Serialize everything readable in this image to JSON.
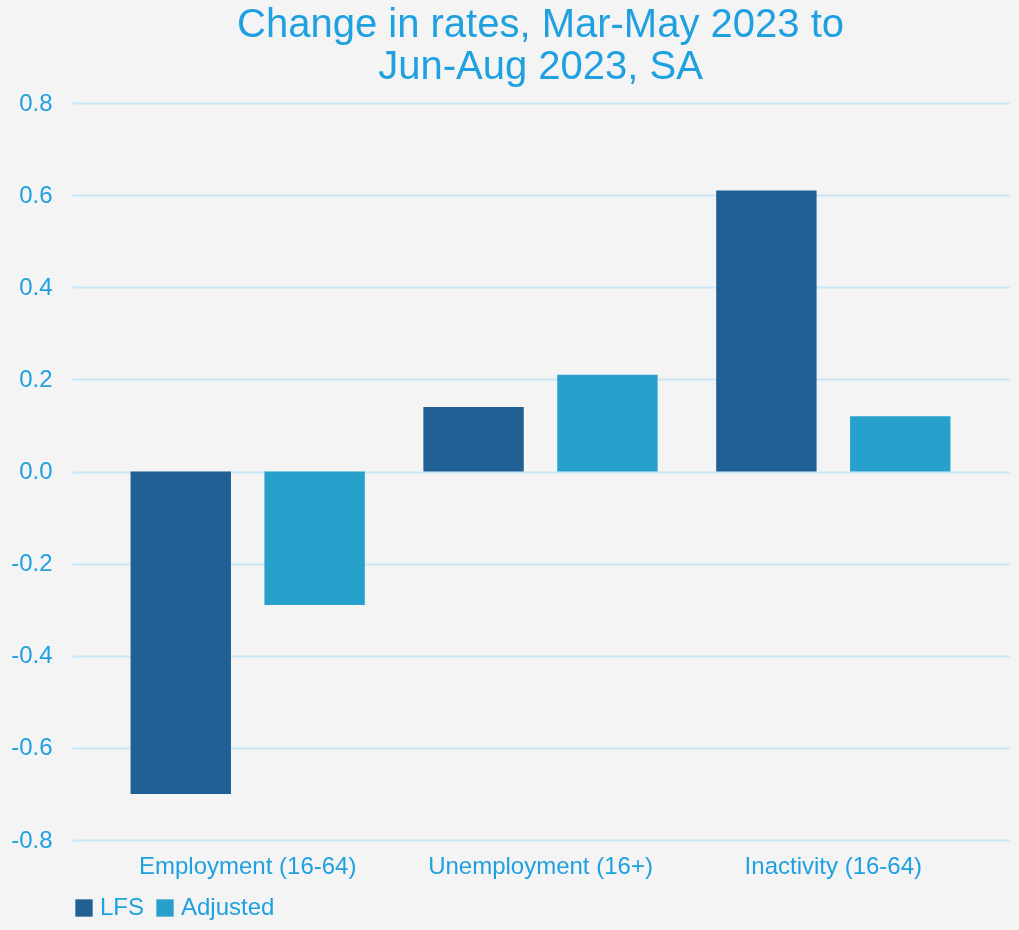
{
  "chart_data": {
    "type": "bar",
    "title": "Change in rates, Mar-May 2023 to Jun-Aug 2023, SA",
    "categories": [
      "Employment (16-64)",
      "Unemployment (16+)",
      "Inactivity (16-64)"
    ],
    "series": [
      {
        "name": "LFS",
        "color": "#206095",
        "values": [
          -0.7,
          0.14,
          0.61
        ]
      },
      {
        "name": "Adjusted",
        "color": "#27a0cc",
        "values": [
          -0.29,
          0.21,
          0.12
        ]
      }
    ],
    "ylim": [
      -0.8,
      0.8
    ],
    "yticks": [
      -0.8,
      -0.6,
      -0.4,
      -0.2,
      {
        "value": 0,
        "label": "0.0"
      },
      0.2,
      0.4,
      0.6,
      0.8
    ],
    "grid": "y",
    "legend": "bottom"
  }
}
